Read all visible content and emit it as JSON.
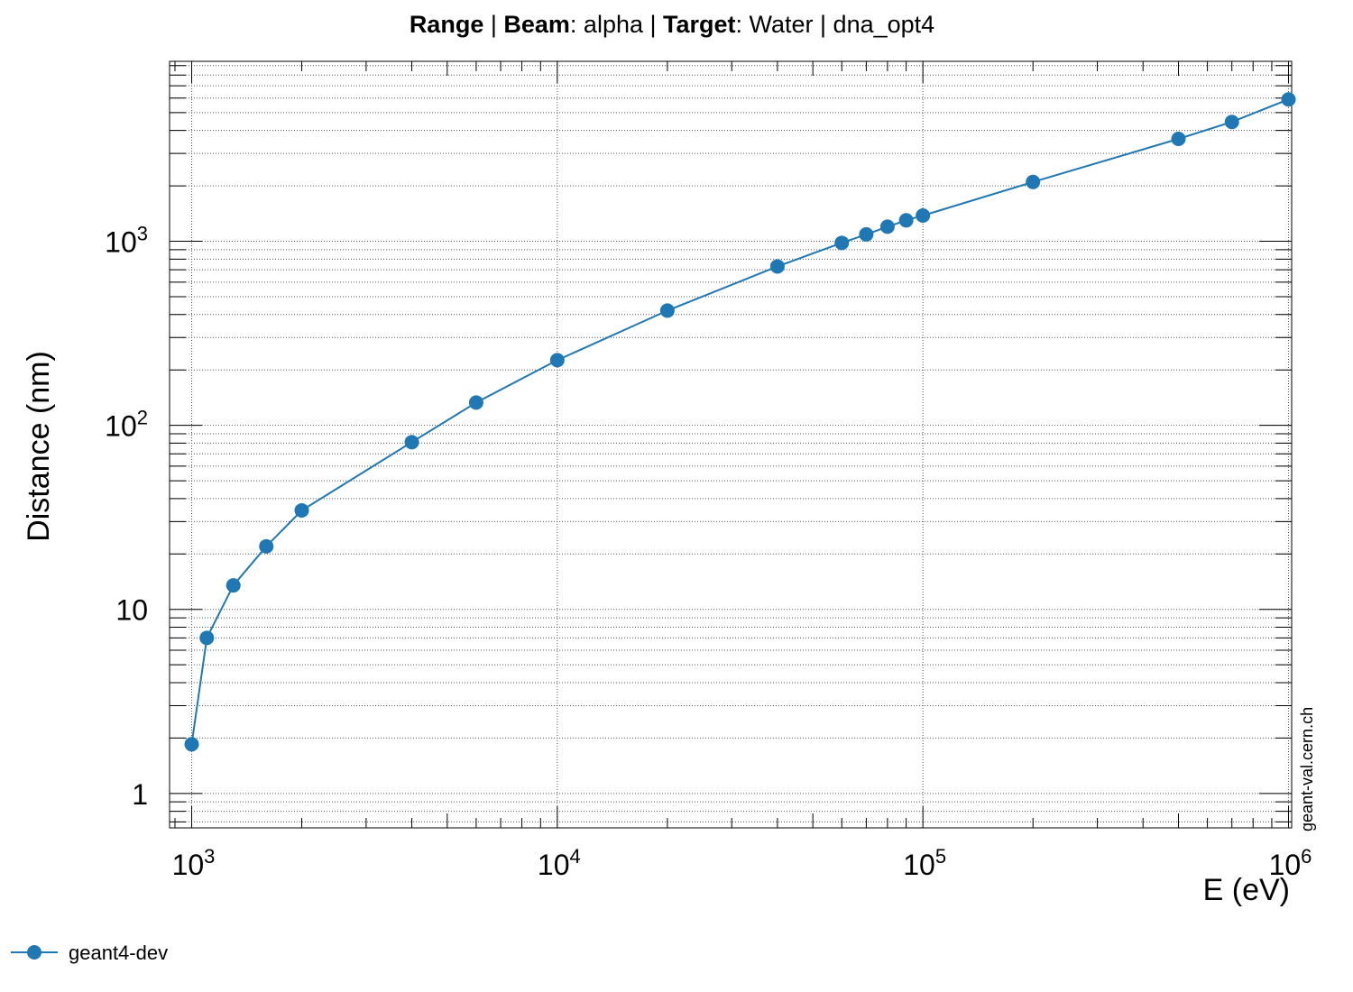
{
  "title": {
    "part1_bold": "Range",
    "sep1": " | ",
    "part2_bold": "Beam",
    "part2_rest": ": alpha | ",
    "part3_bold": "Target",
    "part3_rest": ": Water | dna_opt4"
  },
  "watermark": "geant-val.cern.ch",
  "chart_data": {
    "type": "line",
    "xlabel": "E (eV)",
    "ylabel": "Distance (nm)",
    "xscale": "log",
    "yscale": "log",
    "xlim": [
      870,
      1020000
    ],
    "ylim": [
      0.65,
      9500
    ],
    "grid": true,
    "legend_position": "bottom-left",
    "x_tick_labels": [
      {
        "base": "10",
        "exp": "3"
      },
      {
        "base": "10",
        "exp": "4"
      },
      {
        "base": "10",
        "exp": "5"
      },
      {
        "base": "10",
        "exp": "6"
      }
    ],
    "y_tick_labels": [
      {
        "base": "1",
        "exp": ""
      },
      {
        "base": "10",
        "exp": ""
      },
      {
        "base": "10",
        "exp": "2"
      },
      {
        "base": "10",
        "exp": "3"
      }
    ],
    "series": [
      {
        "name": "geant4-dev",
        "color": "#1f77b4",
        "marker": "circle",
        "x": [
          1000,
          1100,
          1300,
          1600,
          2000,
          4000,
          6000,
          10000,
          20000,
          40000,
          60000,
          70000,
          80000,
          90000,
          100000,
          200000,
          500000,
          700000,
          1000000
        ],
        "y": [
          1.85,
          7.0,
          13.5,
          22,
          34.5,
          81,
          133,
          226,
          420,
          730,
          980,
          1090,
          1200,
          1300,
          1380,
          2100,
          3600,
          4450,
          5900
        ]
      }
    ]
  }
}
